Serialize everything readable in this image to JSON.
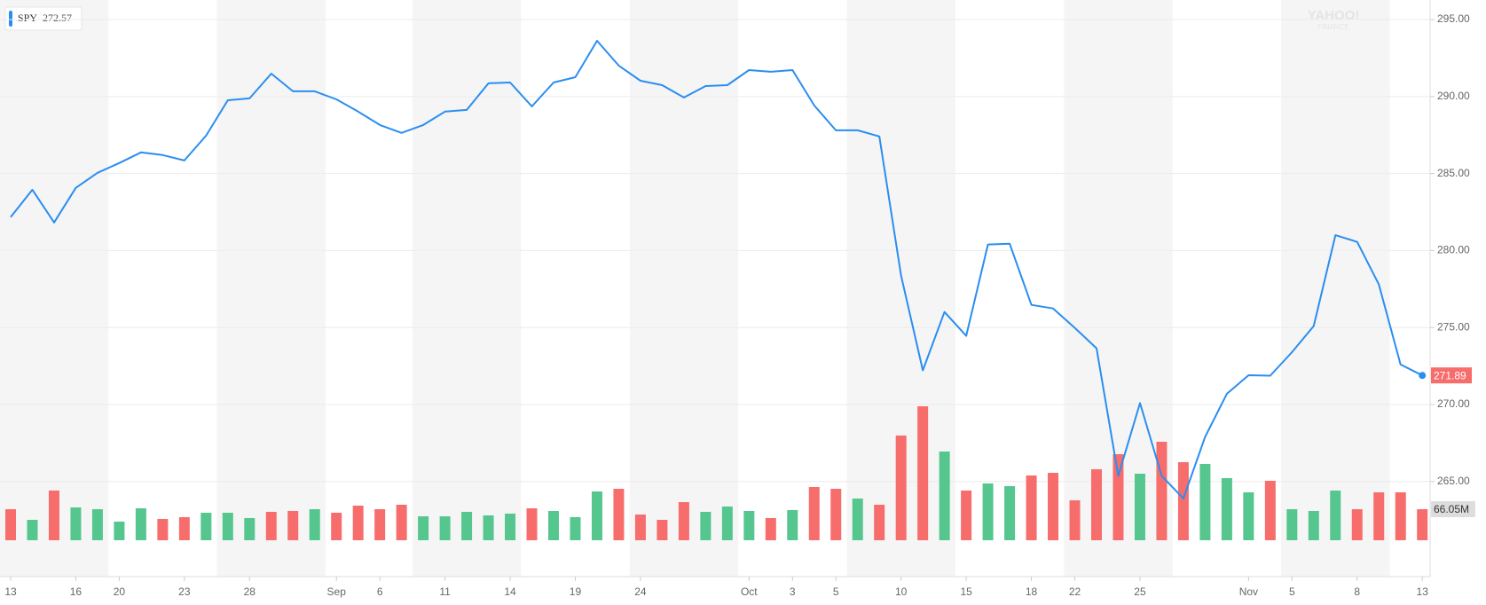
{
  "chart_data": {
    "type": "line",
    "legend_value": 272.57,
    "watermark": [
      "YAHOO!",
      "FINANCE"
    ],
    "categories": [
      "13",
      null,
      null,
      "16",
      null,
      "20",
      null,
      null,
      "23",
      null,
      null,
      "28",
      null,
      null,
      null,
      "Sep",
      null,
      "6",
      null,
      null,
      "11",
      null,
      null,
      "14",
      null,
      null,
      "19",
      null,
      null,
      "24",
      null,
      null,
      null,
      null,
      "Oct",
      null,
      "3",
      null,
      "5",
      null,
      null,
      "10",
      null,
      null,
      "15",
      null,
      null,
      "18",
      null,
      "22",
      null,
      null,
      "25",
      null,
      null,
      null,
      null,
      "Nov",
      null,
      "5",
      null,
      null,
      "8",
      null,
      null,
      "13"
    ],
    "series": [
      {
        "name": "SPY",
        "color": "#2a8ef0",
        "values": [
          282.17,
          283.95,
          281.82,
          284.07,
          285.05,
          285.68,
          286.37,
          286.2,
          285.85,
          287.46,
          289.76,
          289.88,
          291.49,
          290.34,
          290.34,
          289.82,
          289.02,
          288.15,
          287.64,
          288.15,
          289.02,
          289.13,
          290.86,
          290.91,
          289.36,
          290.91,
          291.26,
          293.62,
          292.01,
          291.03,
          290.74,
          289.94,
          290.68,
          290.74,
          291.72,
          291.61,
          291.72,
          289.42,
          287.81,
          287.81,
          287.41,
          278.37,
          272.22,
          276.01,
          274.46,
          280.39,
          280.44,
          276.47,
          276.24,
          274.98,
          273.65,
          265.37,
          270.09,
          265.37,
          263.9,
          267.9,
          270.7,
          271.9,
          271.87,
          273.4,
          275.1,
          281.0,
          280.56,
          277.8,
          272.6,
          271.89
        ]
      }
    ],
    "ylim": [
      259.4,
      296.27
    ],
    "yticks": [
      {
        "value": 265,
        "label": "265.00"
      },
      {
        "value": 270,
        "label": "270.00"
      },
      {
        "value": 275,
        "label": "275.00"
      },
      {
        "value": 280,
        "label": "280.00"
      },
      {
        "value": 285,
        "label": "285.00"
      },
      {
        "value": 290,
        "label": "290.00"
      },
      {
        "value": 295,
        "label": "295.00"
      }
    ],
    "grid": true,
    "current_price": 271.89,
    "current_price_color": "#f76d6c",
    "volume": {
      "ylim": [
        0,
        800
      ],
      "values": [
        66.0,
        43.4,
        105.7,
        69.8,
        66.0,
        39.6,
        67.9,
        45.3,
        49.1,
        58.5,
        58.5,
        47.2,
        60.4,
        62.3,
        66.0,
        58.5,
        73.6,
        66.0,
        75.5,
        50.9,
        50.9,
        60.4,
        52.8,
        56.6,
        67.9,
        62.3,
        49.1,
        103.8,
        109.4,
        54.7,
        43.4,
        81.1,
        60.4,
        71.7,
        62.3,
        47.2,
        64.2,
        113.2,
        109.4,
        88.7,
        75.5,
        222.7,
        284.9,
        188.7,
        105.7,
        120.8,
        115.1,
        137.8,
        143.4,
        84.9,
        151.0,
        183.0,
        141.5,
        209.5,
        166.1,
        162.3,
        132.1,
        101.9,
        126.4,
        66.0,
        62.3,
        105.7,
        66.0,
        101.9,
        101.9,
        66.05
      ],
      "colors": [
        "#f76d6c",
        "#56c68f",
        "#f76d6c",
        "#56c68f",
        "#56c68f",
        "#56c68f",
        "#56c68f",
        "#f76d6c",
        "#f76d6c",
        "#56c68f",
        "#56c68f",
        "#56c68f",
        "#f76d6c",
        "#f76d6c",
        "#56c68f",
        "#f76d6c",
        "#f76d6c",
        "#f76d6c",
        "#f76d6c",
        "#56c68f",
        "#56c68f",
        "#56c68f",
        "#56c68f",
        "#56c68f",
        "#f76d6c",
        "#56c68f",
        "#56c68f",
        "#56c68f",
        "#f76d6c",
        "#f76d6c",
        "#f76d6c",
        "#f76d6c",
        "#56c68f",
        "#56c68f",
        "#56c68f",
        "#f76d6c",
        "#56c68f",
        "#f76d6c",
        "#f76d6c",
        "#56c68f",
        "#f76d6c",
        "#f76d6c",
        "#f76d6c",
        "#56c68f",
        "#f76d6c",
        "#56c68f",
        "#56c68f",
        "#f76d6c",
        "#f76d6c",
        "#f76d6c",
        "#f76d6c",
        "#f76d6c",
        "#56c68f",
        "#f76d6c",
        "#f76d6c",
        "#56c68f",
        "#56c68f",
        "#56c68f",
        "#f76d6c",
        "#56c68f",
        "#56c68f",
        "#56c68f",
        "#f76d6c",
        "#f76d6c",
        "#f76d6c",
        "#f76d6c"
      ],
      "current": {
        "value": 66.05,
        "label": "66.05M"
      }
    }
  }
}
